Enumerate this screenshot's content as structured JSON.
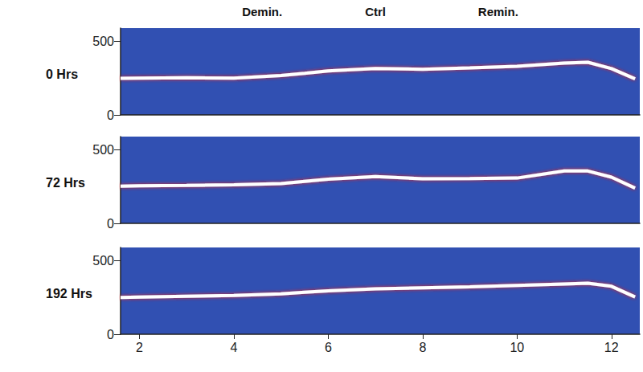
{
  "chart_data": [
    {
      "type": "line",
      "title": "0 Hrs",
      "annotations": [
        {
          "text": "Demin.",
          "x": 4.6
        },
        {
          "text": "Ctrl",
          "x": 7.0
        },
        {
          "text": "Remin.",
          "x": 9.6
        }
      ],
      "x": [
        1.6,
        2,
        3,
        4,
        5,
        5.5,
        6,
        7,
        8,
        9,
        10,
        11,
        11.5,
        12,
        12.5
      ],
      "series": [
        {
          "color": "#ffffff",
          "values": [
            248,
            250,
            252,
            250,
            268,
            283,
            299,
            315,
            310,
            320,
            331,
            353,
            358,
            315,
            245
          ]
        }
      ],
      "xlim": [
        1.6,
        12.6
      ],
      "xticks": [
        2,
        4,
        6,
        8,
        10,
        12
      ],
      "ylim": [
        0,
        590
      ],
      "yticks": [
        0,
        500
      ],
      "tick_labels": "y"
    },
    {
      "type": "line",
      "title": "72 Hrs",
      "x": [
        1.6,
        2,
        3,
        4,
        5,
        5.5,
        6,
        7,
        8,
        9,
        10,
        11,
        11.5,
        12,
        12.5
      ],
      "series": [
        {
          "color": "#ffffff",
          "values": [
            253,
            255,
            258,
            262,
            270,
            285,
            300,
            318,
            303,
            305,
            308,
            356,
            356,
            314,
            240
          ]
        }
      ],
      "xlim": [
        1.6,
        12.6
      ],
      "xticks": [
        2,
        4,
        6,
        8,
        10,
        12
      ],
      "ylim": [
        0,
        590
      ],
      "yticks": [
        0,
        500
      ],
      "tick_labels": "y"
    },
    {
      "type": "line",
      "title": "192 Hrs",
      "x": [
        1.6,
        2,
        3,
        4,
        5,
        5.5,
        6,
        7,
        8,
        9,
        10,
        11,
        11.5,
        12,
        12.5
      ],
      "series": [
        {
          "color": "#ffffff",
          "values": [
            250,
            253,
            258,
            263,
            275,
            285,
            295,
            308,
            316,
            322,
            332,
            342,
            347,
            326,
            253
          ]
        }
      ],
      "xlim": [
        1.6,
        12.6
      ],
      "xticks": [
        2,
        4,
        6,
        8,
        10,
        12
      ],
      "ylim": [
        0,
        590
      ],
      "yticks": [
        0,
        500
      ]
    }
  ]
}
